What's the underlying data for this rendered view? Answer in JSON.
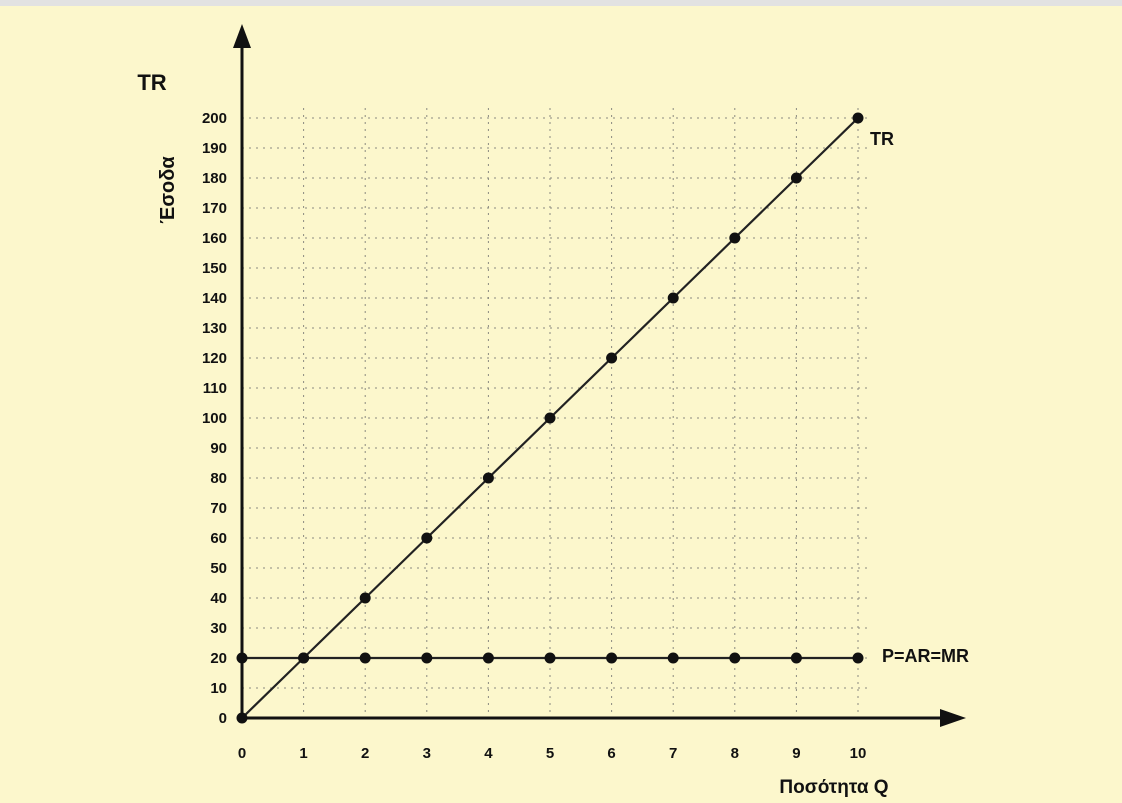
{
  "chart_data": {
    "type": "line",
    "y_title": "TR",
    "ylabel": "Έσοδα",
    "xlabel": "Ποσότητα Q",
    "xlim": [
      0,
      10
    ],
    "ylim": [
      0,
      200
    ],
    "x_ticks": [
      "0",
      "1",
      "2",
      "3",
      "4",
      "5",
      "6",
      "7",
      "8",
      "9",
      "10"
    ],
    "y_ticks": [
      "0",
      "10",
      "20",
      "30",
      "40",
      "50",
      "60",
      "70",
      "80",
      "90",
      "100",
      "110",
      "120",
      "130",
      "140",
      "150",
      "160",
      "170",
      "180",
      "190",
      "200"
    ],
    "grid": true,
    "series": [
      {
        "name": "TR",
        "x": [
          0,
          1,
          2,
          3,
          4,
          5,
          6,
          7,
          8,
          9,
          10
        ],
        "values": [
          0,
          20,
          40,
          60,
          80,
          100,
          120,
          140,
          160,
          180,
          200
        ]
      },
      {
        "name": "P=AR=MR",
        "x": [
          0,
          1,
          2,
          3,
          4,
          5,
          6,
          7,
          8,
          9,
          10
        ],
        "values": [
          20,
          20,
          20,
          20,
          20,
          20,
          20,
          20,
          20,
          20,
          20
        ]
      }
    ]
  }
}
